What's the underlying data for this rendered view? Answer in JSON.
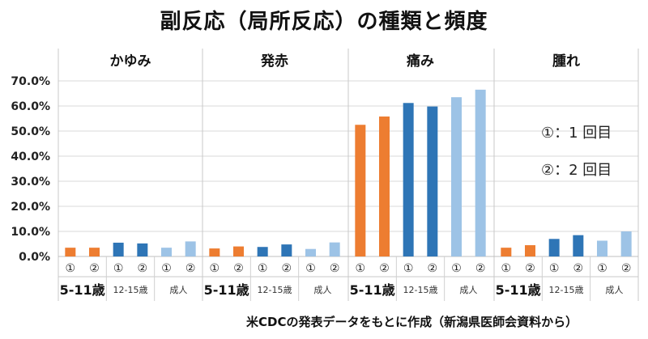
{
  "chart_data": {
    "type": "bar",
    "title": "副反応（局所反応）の種類と頻度",
    "panels": [
      "かゆみ",
      "発赤",
      "痛み",
      "腫れ"
    ],
    "groups": [
      "5-11歳",
      "12-15歳",
      "成人"
    ],
    "doses": [
      "①",
      "②"
    ],
    "ylim": [
      0,
      70
    ],
    "yticks": [
      "0.0%",
      "10.0%",
      "20.0%",
      "30.0%",
      "40.0%",
      "50.0%",
      "60.0%",
      "70.0%"
    ],
    "grid": true,
    "colors": {
      "5-11歳": "#ed7d31",
      "12-15歳": "#2e75b6",
      "成人": "#9dc3e6"
    },
    "values": {
      "かゆみ": [
        3.5,
        3.5,
        5.5,
        5.2,
        3.5,
        6.0
      ],
      "発赤": [
        3.2,
        4.0,
        3.8,
        4.8,
        3.0,
        5.6
      ],
      "痛み": [
        52.5,
        55.8,
        61.2,
        59.8,
        63.5,
        66.5
      ],
      "腫れ": [
        3.5,
        4.5,
        7.0,
        8.5,
        6.3,
        10.0
      ]
    },
    "notes": [
      "①：1 回目",
      "②：2 回目"
    ],
    "source": "米CDCの発表データをもとに作成（新潟県医師会資料から）"
  }
}
